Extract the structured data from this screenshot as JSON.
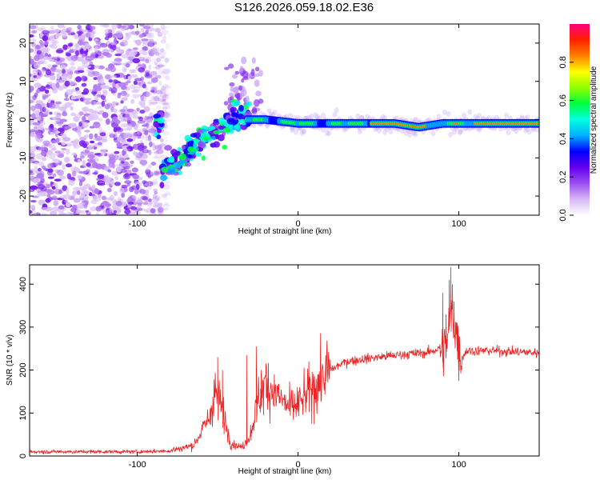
{
  "figure": {
    "title": "S126.2026.059.18.02.E36"
  },
  "chart_data": [
    {
      "type": "heatmap",
      "name": "spectrogram",
      "xlabel": "Height of straight line (km)",
      "ylabel": "Frequency (Hz)",
      "xlim": [
        -167,
        150
      ],
      "ylim": [
        -25,
        25
      ],
      "xticks": [
        -100,
        0,
        100
      ],
      "yticks": [
        -20,
        -10,
        0,
        10,
        20
      ],
      "xtick_labels": [
        "-100",
        "0",
        "100"
      ],
      "ytick_labels": [
        "-20",
        "-10",
        "0",
        "10",
        "20"
      ],
      "noise_region_x": [
        -167,
        -80
      ],
      "ridge": {
        "description_points_x": [
          -85,
          -75,
          -65,
          -55,
          -45,
          -38,
          -32,
          -20,
          0,
          20,
          40,
          60,
          75,
          90,
          110,
          130,
          150
        ],
        "description_points_y": [
          -13,
          -11,
          -7,
          -4,
          -2,
          1,
          0,
          0,
          -1,
          -1,
          -1,
          -1,
          -2,
          -1,
          -1,
          -1,
          -1
        ]
      },
      "colorbar": {
        "label": "Normalized spectral amplitude",
        "range": [
          0,
          1
        ],
        "ticks": [
          0.0,
          0.2,
          0.4,
          0.6,
          0.8
        ],
        "tick_labels": [
          "0.0",
          "0.2",
          "0.4",
          "0.6",
          "0.8"
        ],
        "colormap": [
          "#ffffff",
          "#d8b8f5",
          "#9a4ef0",
          "#6600ee",
          "#0000ff",
          "#00b0ff",
          "#00ffe0",
          "#00ff40",
          "#90ff00",
          "#ffff00",
          "#ff8000",
          "#ff2000",
          "#ff0080"
        ]
      }
    },
    {
      "type": "line",
      "name": "snr",
      "xlabel": "Height of straight line (km)",
      "ylabel": "SNR (10 * v/v)",
      "xlim": [
        -167,
        150
      ],
      "ylim": [
        0,
        445
      ],
      "xticks": [
        -100,
        0,
        100
      ],
      "yticks": [
        0,
        100,
        200,
        300,
        400
      ],
      "xtick_labels": [
        "-100",
        "0",
        "100"
      ],
      "ytick_labels": [
        "0",
        "100",
        "200",
        "300",
        "400"
      ],
      "color": "#ee2222",
      "envelope_x": [
        -167,
        -100,
        -80,
        -65,
        -55,
        -52,
        -48,
        -42,
        -35,
        -30,
        -25,
        -20,
        -15,
        -10,
        -5,
        0,
        10,
        20,
        30,
        50,
        70,
        80,
        88,
        90,
        93,
        95,
        98,
        100,
        102,
        105,
        120,
        150
      ],
      "envelope_y": [
        10,
        10,
        12,
        25,
        90,
        150,
        120,
        30,
        20,
        45,
        130,
        170,
        150,
        130,
        110,
        120,
        160,
        200,
        220,
        230,
        238,
        240,
        250,
        240,
        270,
        340,
        300,
        240,
        230,
        245,
        245,
        240
      ],
      "spike_x": [
        -50,
        -47,
        -32,
        -26,
        -23,
        -20,
        90,
        92,
        94,
        95,
        96,
        97,
        99,
        100
      ],
      "spike_y": [
        230,
        200,
        235,
        255,
        200,
        215,
        380,
        330,
        410,
        440,
        400,
        360,
        310,
        280
      ]
    }
  ]
}
